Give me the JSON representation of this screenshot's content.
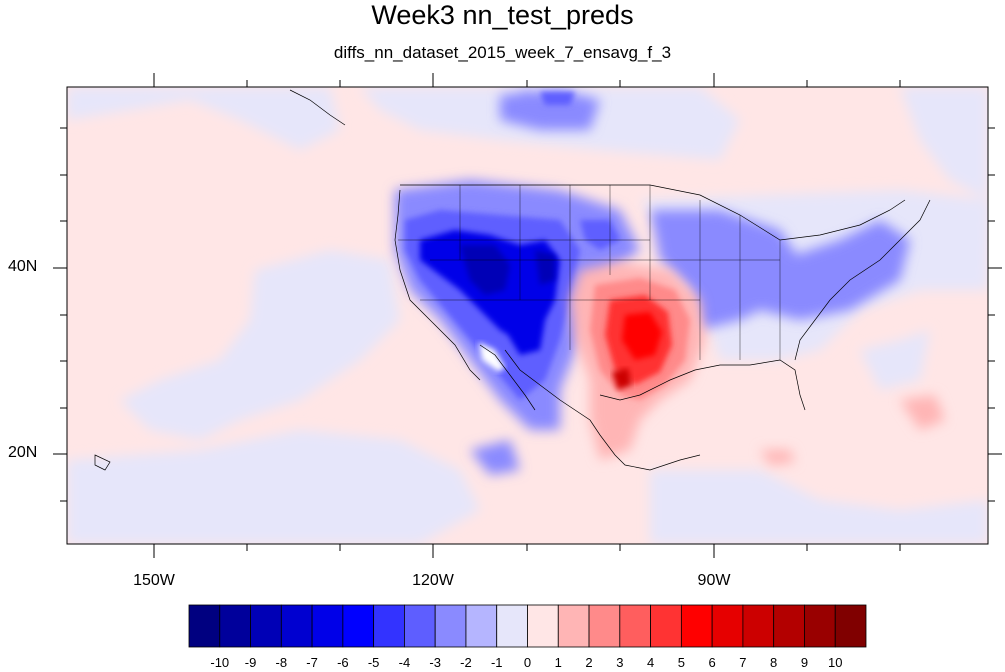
{
  "title": "Week3 nn_test_preds",
  "subtitle": "diffs_nn_dataset_2015_week_7_ensavg_f_3",
  "lat_labels": [
    "40N",
    "20N"
  ],
  "lon_labels": [
    "150W",
    "120W",
    "90W"
  ],
  "colorbar": {
    "labels": [
      "-10",
      "-9",
      "-8",
      "-7",
      "-6",
      "-5",
      "-4",
      "-3",
      "-2",
      "-1",
      "0",
      "1",
      "2",
      "3",
      "4",
      "5",
      "6",
      "7",
      "8",
      "9",
      "10"
    ],
    "colors": [
      "#000080",
      "#00009b",
      "#0000b6",
      "#0000d0",
      "#0000e8",
      "#0000ff",
      "#3333ff",
      "#5e5eff",
      "#8a8aff",
      "#b5b5ff",
      "#e6e6fa",
      "#ffe6e6",
      "#ffb5b5",
      "#ff8a8a",
      "#ff5e5e",
      "#ff3333",
      "#ff0000",
      "#e60000",
      "#cc0000",
      "#b30000",
      "#990000",
      "#800000"
    ]
  },
  "map_extent": {
    "lon_min": -160,
    "lon_max": -62,
    "lat_min": 10,
    "lat_max": 59
  }
}
